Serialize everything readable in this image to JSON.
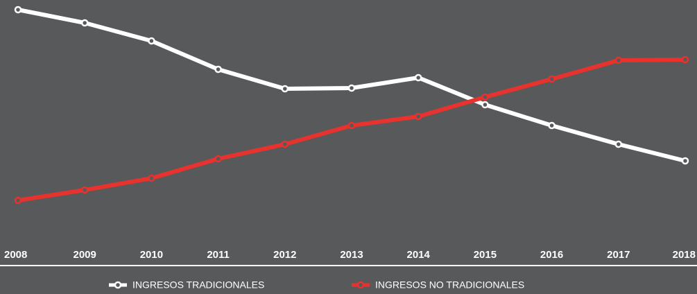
{
  "chart_data": {
    "type": "line",
    "categories": [
      "2008",
      "2009",
      "2010",
      "2011",
      "2012",
      "2013",
      "2014",
      "2015",
      "2016",
      "2017",
      "2018"
    ],
    "series": [
      {
        "name": "INGRESOS TRADICIONALES",
        "color": "#ffffff",
        "values": [
          369,
          350,
          324,
          283,
          255,
          256,
          271,
          232,
          202,
          175,
          151
        ]
      },
      {
        "name": "INGRESOS NO TRADICIONALES",
        "color": "#e8322d",
        "values": [
          94,
          109,
          126,
          154,
          175,
          202,
          215,
          243,
          269,
          296,
          297
        ]
      }
    ],
    "ylim": [
      0,
      383
    ],
    "background": "#58595b"
  }
}
